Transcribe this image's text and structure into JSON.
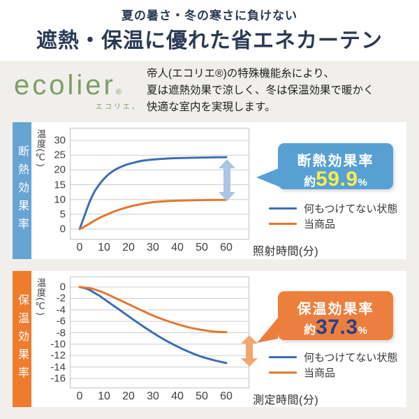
{
  "header": {
    "subtitle": "夏の暑さ・冬の寒さに負けない",
    "title": "遮熱・保温に優れた省エネカーテン"
  },
  "intro": {
    "logo": {
      "wordmark": "ecolier",
      "registered": "®",
      "ruby": "エコリエ。"
    },
    "lines": [
      "帝人(エコリエ®)の特殊機能糸により、",
      "夏は遮熱効果で涼しく、冬は保温効果で暖かく",
      "快適な室内を実現します。"
    ]
  },
  "colors": {
    "brand_green": "#7f9d62",
    "accent_blue": "#66a4d4",
    "accent_orange": "#ed7c2e",
    "line_blue": "#3d6eb5",
    "line_orange": "#e1772f",
    "highlight_yellow": "#f6ee4c",
    "highlight_navy": "#27418f",
    "title_navy": "#2b3a54"
  },
  "chart_data": [
    {
      "type": "line",
      "banner_label": "断熱効果率",
      "accent": "#66a4d4",
      "arrow_color": "#a9c6e2",
      "ylabel": "温度(℃)",
      "xlabel": "照射時間(分)",
      "x_ticks": [
        0,
        10,
        20,
        30,
        40,
        50,
        60
      ],
      "y_ticks": [
        30,
        25,
        20,
        15,
        10,
        5,
        0
      ],
      "xlim": [
        0,
        60
      ],
      "ylim": [
        0,
        30
      ],
      "grid": true,
      "legend_position": "right-bottom",
      "series": [
        {
          "name": "何もつけてない状態",
          "color": "#3d6eb5",
          "points": [
            [
              0,
              0
            ],
            [
              2,
              4.5
            ],
            [
              4,
              9
            ],
            [
              6,
              12.5
            ],
            [
              8,
              15
            ],
            [
              10,
              17
            ],
            [
              12,
              18.6
            ],
            [
              14,
              19.8
            ],
            [
              16,
              20.7
            ],
            [
              18,
              21.4
            ],
            [
              20,
              22
            ],
            [
              25,
              23
            ],
            [
              30,
              23.5
            ],
            [
              35,
              23.8
            ],
            [
              40,
              24
            ],
            [
              45,
              24.1
            ],
            [
              50,
              24.2
            ],
            [
              55,
              24.25
            ],
            [
              60,
              24.3
            ]
          ]
        },
        {
          "name": "当商品",
          "color": "#e1772f",
          "points": [
            [
              0,
              0
            ],
            [
              2,
              0.8
            ],
            [
              4,
              1.8
            ],
            [
              6,
              2.8
            ],
            [
              8,
              3.7
            ],
            [
              10,
              4.5
            ],
            [
              12,
              5.2
            ],
            [
              14,
              5.9
            ],
            [
              16,
              6.5
            ],
            [
              18,
              7
            ],
            [
              20,
              7.5
            ],
            [
              25,
              8.4
            ],
            [
              30,
              9.1
            ],
            [
              35,
              9.4
            ],
            [
              40,
              9.6
            ],
            [
              45,
              9.7
            ],
            [
              50,
              9.8
            ],
            [
              55,
              9.85
            ],
            [
              60,
              9.9
            ]
          ]
        }
      ],
      "callout": {
        "title": "断熱効果率",
        "approx": "約",
        "value": "59.9",
        "unit": "%",
        "bg": "#58a0d3",
        "value_color": "#f6ee4c"
      }
    },
    {
      "type": "line",
      "banner_label": "保温効果率",
      "accent": "#ed7c2e",
      "arrow_color": "#f5a56e",
      "ylabel": "温度(℃)",
      "xlabel": "測定時間(分)",
      "x_ticks": [
        0,
        10,
        20,
        30,
        40,
        50,
        60
      ],
      "y_ticks": [
        0,
        -2,
        -4,
        -6,
        -8,
        -10,
        -12,
        -14,
        -16
      ],
      "xlim": [
        0,
        60
      ],
      "ylim": [
        -16,
        0
      ],
      "grid": true,
      "legend_position": "right-bottom",
      "series": [
        {
          "name": "何もつけてない状態",
          "color": "#3d6eb5",
          "points": [
            [
              0,
              0
            ],
            [
              2,
              -0.2
            ],
            [
              4,
              -0.5
            ],
            [
              6,
              -1
            ],
            [
              8,
              -1.5
            ],
            [
              10,
              -2.1
            ],
            [
              12,
              -2.7
            ],
            [
              14,
              -3.3
            ],
            [
              16,
              -3.9
            ],
            [
              18,
              -4.5
            ],
            [
              20,
              -5.1
            ],
            [
              25,
              -6.6
            ],
            [
              30,
              -8
            ],
            [
              35,
              -9.3
            ],
            [
              40,
              -10.4
            ],
            [
              45,
              -11.4
            ],
            [
              50,
              -12.2
            ],
            [
              55,
              -12.8
            ],
            [
              60,
              -13.3
            ]
          ]
        },
        {
          "name": "当商品",
          "color": "#e1772f",
          "points": [
            [
              0,
              0
            ],
            [
              2,
              -0.1
            ],
            [
              4,
              -0.2
            ],
            [
              6,
              -0.4
            ],
            [
              8,
              -0.7
            ],
            [
              10,
              -1
            ],
            [
              12,
              -1.4
            ],
            [
              14,
              -1.8
            ],
            [
              16,
              -2.2
            ],
            [
              18,
              -2.6
            ],
            [
              20,
              -3
            ],
            [
              25,
              -4
            ],
            [
              30,
              -5
            ],
            [
              35,
              -5.8
            ],
            [
              40,
              -6.5
            ],
            [
              45,
              -7.1
            ],
            [
              50,
              -7.5
            ],
            [
              55,
              -7.8
            ],
            [
              60,
              -7.9
            ]
          ]
        }
      ],
      "callout": {
        "title": "保温効果率",
        "approx": "約",
        "value": "37.3",
        "unit": "%",
        "bg": "#ed7f3e",
        "value_color": "#27418f"
      }
    }
  ]
}
